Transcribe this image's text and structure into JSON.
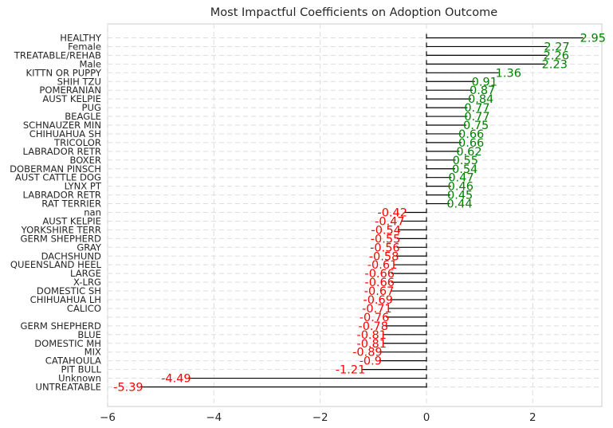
{
  "chart_data": {
    "type": "bar",
    "orientation": "horizontal",
    "title": "Most Impactful Coefficients on Adoption Outcome",
    "xlabel": "",
    "ylabel": "",
    "xlim": [
      -6,
      3.3
    ],
    "xticks": [
      -6,
      -4,
      -2,
      0,
      2
    ],
    "xtick_labels": [
      "−6",
      "−4",
      "−2",
      "0",
      "2"
    ],
    "grid": true,
    "legend": "none",
    "colors": {
      "positive": "#008000",
      "negative": "#ff0000",
      "bar": "#000000",
      "grid": "#dddddd",
      "axes": "#cccccc"
    },
    "categories": [
      "HEALTHY",
      "Female",
      "TREATABLE/REHAB",
      "Male",
      "KITTN OR PUPPY",
      "SHIH TZU",
      "POMERANIAN",
      "AUST KELPIE",
      "PUG",
      "BEAGLE",
      "SCHNAUZER MIN",
      "CHIHUAHUA SH",
      "TRICOLOR",
      "LABRADOR RETR",
      "BOXER",
      "DOBERMAN PINSCH",
      "AUST CATTLE DOG",
      "LYNX PT",
      "LABRADOR RETR",
      "RAT TERRIER",
      "nan",
      "AUST KELPIE",
      "YORKSHIRE TERR",
      "GERM SHEPHERD",
      "GRAY",
      "DACHSHUND",
      "QUEENSLAND HEEL",
      "LARGE",
      "X-LRG",
      "DOMESTIC SH",
      "CHIHUAHUA LH",
      "CALICO",
      "",
      "GERM SHEPHERD",
      "BLUE",
      "DOMESTIC MH",
      "MIX",
      "CATAHOULA",
      "PIT BULL",
      "Unknown",
      "UNTREATABLE"
    ],
    "values": [
      2.95,
      2.27,
      2.26,
      2.23,
      1.36,
      0.91,
      0.87,
      0.84,
      0.77,
      0.77,
      0.75,
      0.66,
      0.66,
      0.62,
      0.55,
      0.54,
      0.47,
      0.46,
      0.45,
      0.44,
      -0.42,
      -0.47,
      -0.54,
      -0.55,
      -0.56,
      -0.58,
      -0.61,
      -0.66,
      -0.66,
      -0.67,
      -0.69,
      -0.71,
      -0.76,
      -0.78,
      -0.81,
      -0.81,
      -0.89,
      -0.9,
      -1.21,
      -4.49,
      -5.39
    ],
    "value_labels": [
      "2.95",
      "2.27",
      "2.26",
      "2.23",
      "1.36",
      "0.91",
      "0.87",
      "0.84",
      "0.77",
      "0.77",
      "0.75",
      "0.66",
      "0.66",
      "0.62",
      "0.55",
      "0.54",
      "0.47",
      "0.46",
      "0.45",
      "0.44",
      "-0.42",
      "-0.47",
      "-0.54",
      "-0.55",
      "-0.56",
      "-0.58",
      "-0.61",
      "-0.66",
      "-0.66",
      "-0.67",
      "-0.69",
      "-0.71",
      "-0.76",
      "-0.78",
      "-0.81",
      "-0.81",
      "-0.89",
      "-0.9",
      "-1.21",
      "-4.49",
      "-5.39"
    ]
  }
}
